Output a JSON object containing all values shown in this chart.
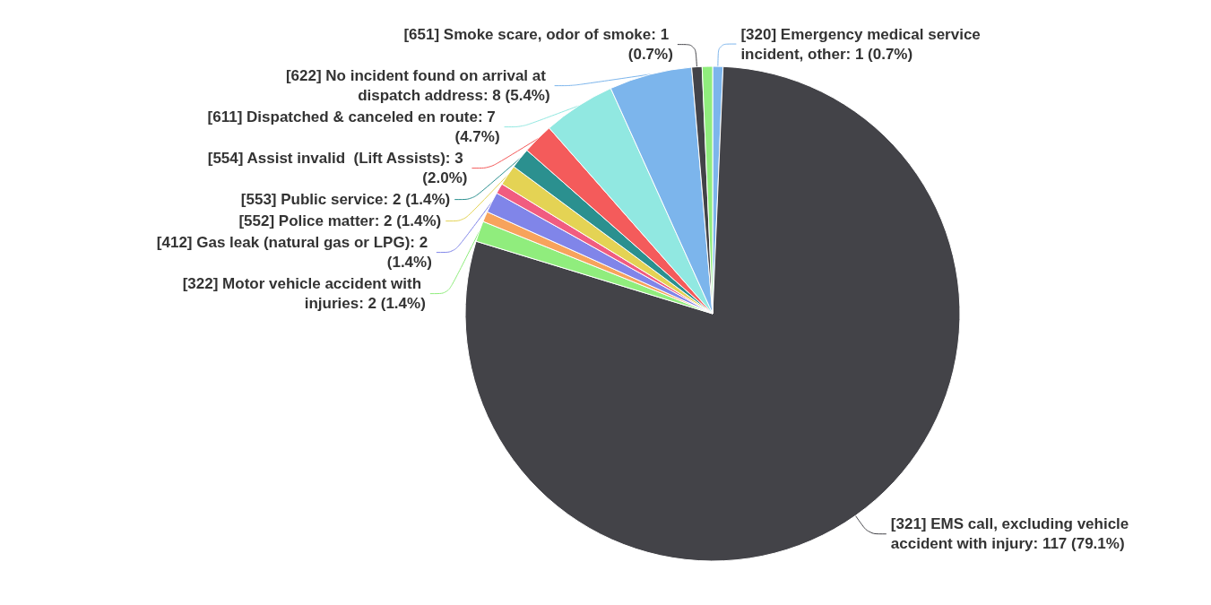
{
  "chart_data": {
    "type": "pie",
    "categories": [
      "[320] Emergency medical service incident, other",
      "[321] EMS call, excluding vehicle accident with injury",
      "[322] Motor vehicle accident with injuries",
      null,
      "[412] Gas leak (natural gas or LPG)",
      null,
      "[552] Police matter",
      "[553] Public service",
      "[554] Assist invalid  (Lift Assists)",
      "[611] Dispatched & canceled en route",
      "[622] No incident found on arrival at dispatch address",
      "[651] Smoke scare, odor of smoke",
      null
    ],
    "values": [
      1,
      117,
      2,
      1,
      2,
      1,
      2,
      2,
      3,
      7,
      8,
      1,
      1
    ],
    "value_labels": [
      "1 (0.7%)",
      "117 (79.1%)",
      "2 (1.4%)",
      null,
      "2 (1.4%)",
      null,
      "2 (1.4%)",
      "2 (1.4%)",
      "3 (2.0%)",
      "7 (4.7%)",
      "8 (5.4%)",
      "1 (0.7%)",
      null
    ],
    "colors": [
      "#7cb5ec",
      "#434348",
      "#90ed7d",
      "#f7a35c",
      "#8085e9",
      "#f15c80",
      "#e4d354",
      "#2b908f",
      "#f45b5b",
      "#91e8e1",
      "#7cb5ec",
      "#434348",
      "#90ed7d"
    ],
    "legend": false
  }
}
